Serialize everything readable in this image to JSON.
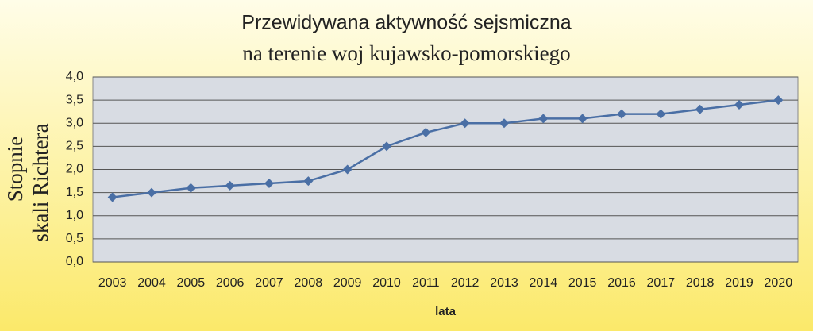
{
  "chart_data": {
    "type": "line",
    "title": "Przewidywana aktywność sejsmiczna",
    "subtitle": "na terenie woj kujawsko-pomorskiego",
    "ylabel": [
      "Stopnie",
      "skali Richtera"
    ],
    "xlabel": "lata",
    "categories": [
      "2003",
      "2004",
      "2005",
      "2006",
      "2007",
      "2008",
      "2009",
      "2010",
      "2011",
      "2012",
      "2013",
      "2014",
      "2015",
      "2016",
      "2017",
      "2018",
      "2019",
      "2020"
    ],
    "values": [
      1.4,
      1.5,
      1.6,
      1.65,
      1.7,
      1.75,
      2.0,
      2.5,
      2.8,
      3.0,
      3.0,
      3.1,
      3.1,
      3.2,
      3.2,
      3.3,
      3.4,
      3.5
    ],
    "color": "#4a6fa5",
    "ylim": [
      0,
      4
    ],
    "yticks": [
      {
        "value": 0,
        "label": "0,0"
      },
      {
        "value": 0.5,
        "label": "0,5"
      },
      {
        "value": 1,
        "label": "1,0"
      },
      {
        "value": 1.5,
        "label": "1,5"
      },
      {
        "value": 2,
        "label": "2,0"
      },
      {
        "value": 2.5,
        "label": "2,5"
      },
      {
        "value": 3,
        "label": "3,0"
      },
      {
        "value": 3.5,
        "label": "3,5"
      },
      {
        "value": 4,
        "label": "4,0"
      }
    ],
    "grid": true
  }
}
